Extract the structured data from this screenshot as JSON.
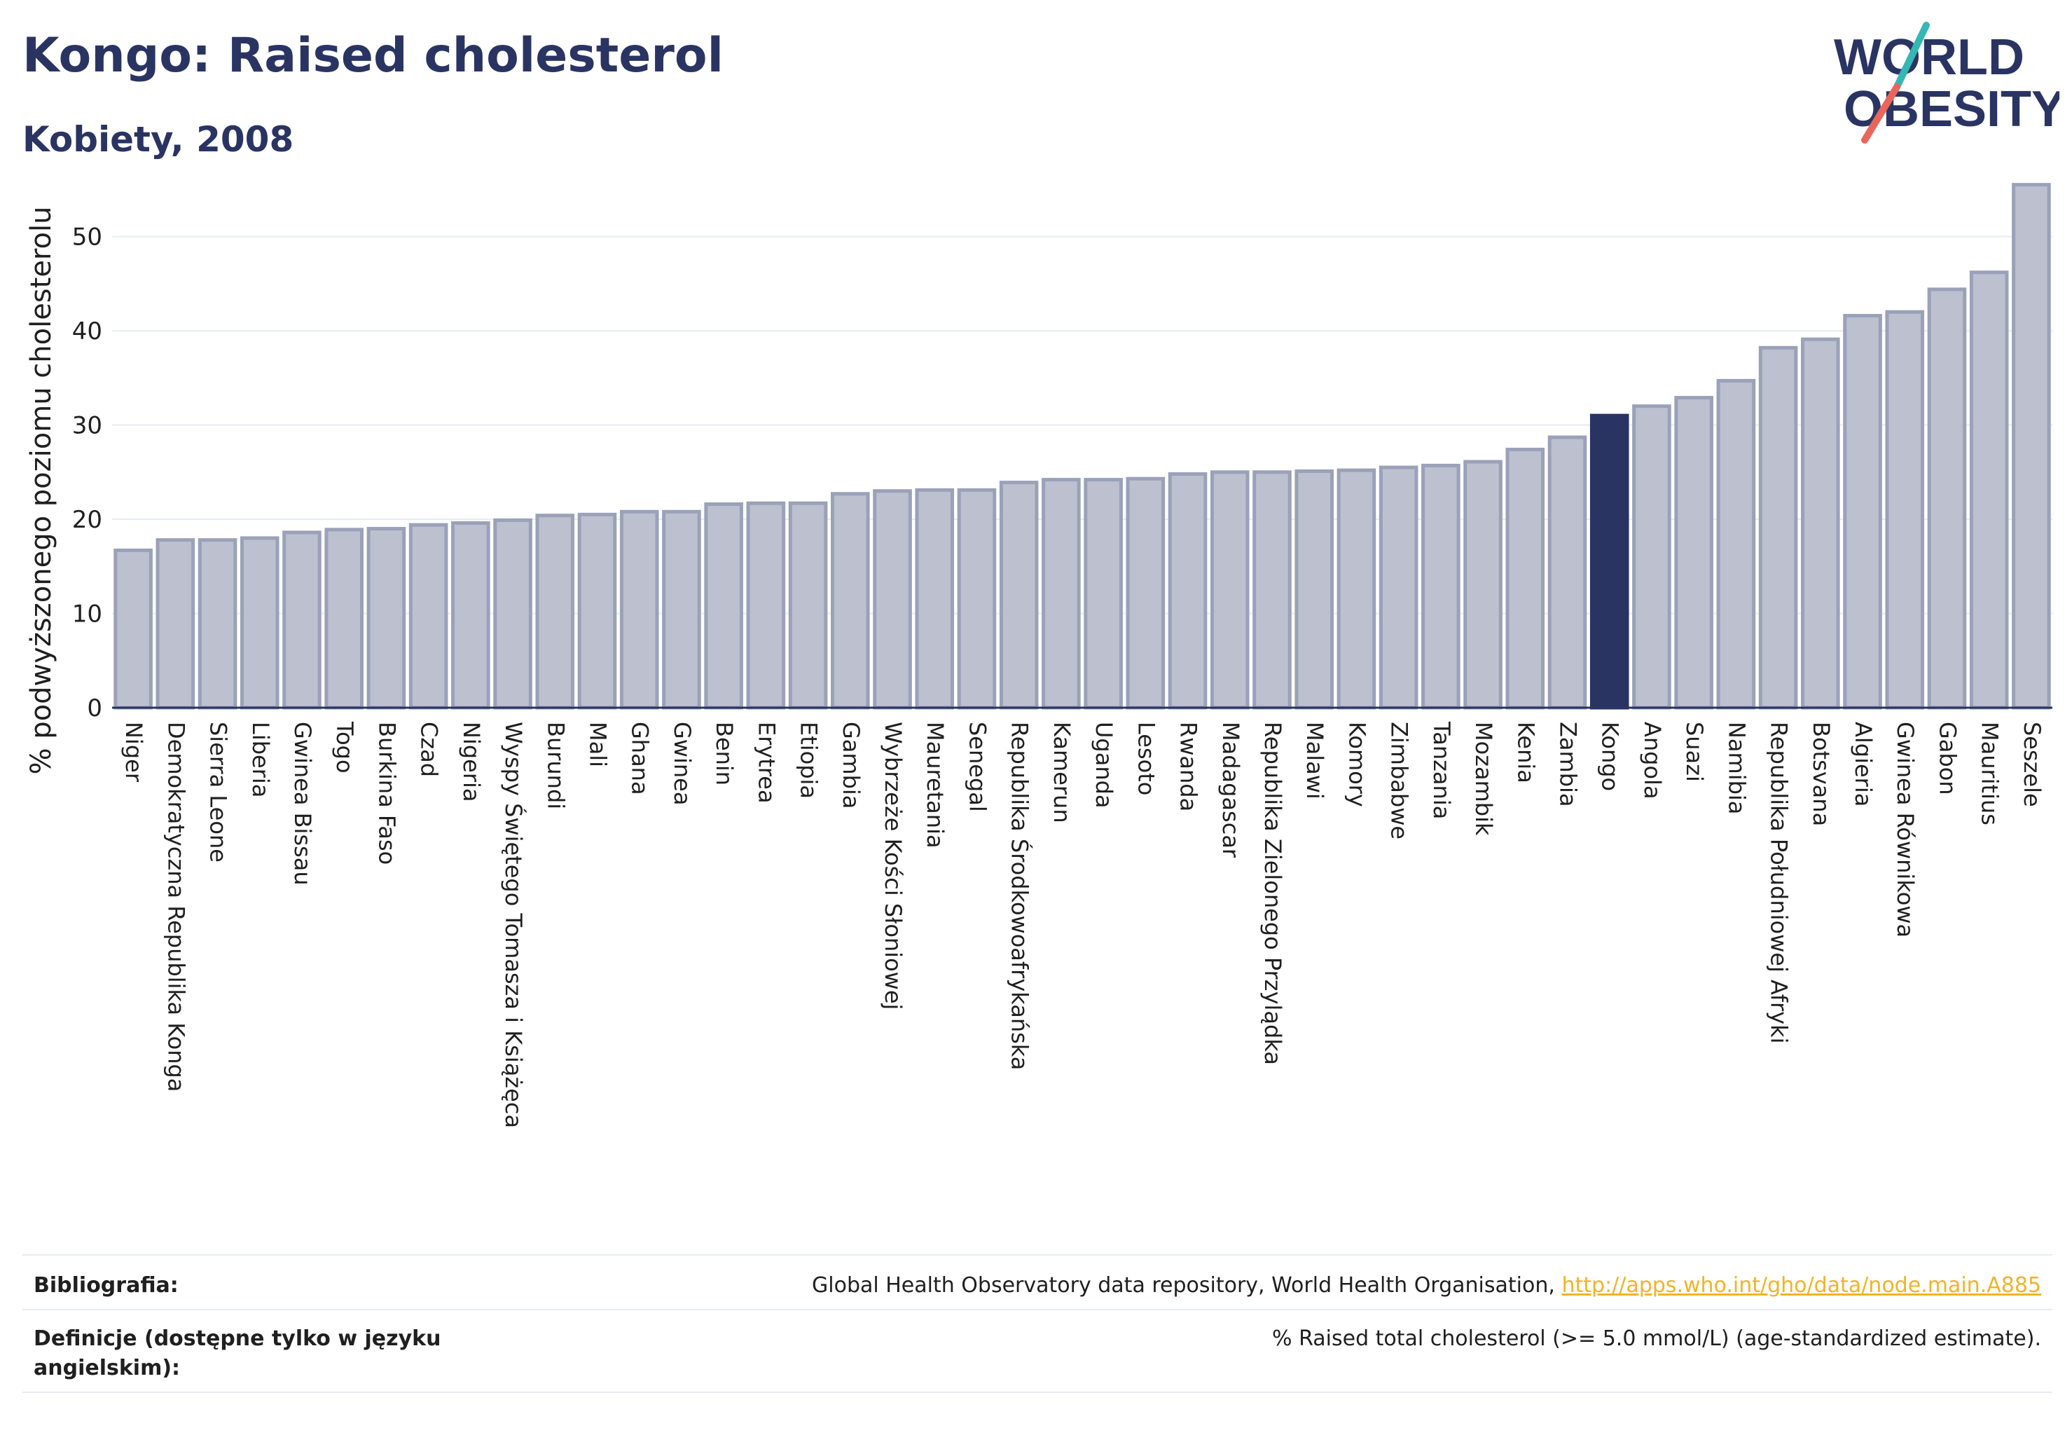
{
  "title": "Kongo: Raised cholesterol",
  "subtitle": "Kobiety, 2008",
  "logo": {
    "line1": "WORLD",
    "line2": "OBESITY",
    "accent_teal": "#36b7b4",
    "accent_coral": "#e8675a"
  },
  "colors": {
    "bar": "#bcc0cf",
    "bar_edge": "#9aa1b8",
    "highlight": "#2a3463",
    "grid": "#e8ebf3",
    "link": "#f0b428"
  },
  "chart_data": {
    "type": "bar",
    "ylabel": "% podwyższonego poziomu cholesterolu",
    "xlabel": "",
    "ylim": [
      0,
      58
    ],
    "yticks": [
      0,
      10,
      20,
      30,
      40,
      50
    ],
    "grid": true,
    "highlight": "Kongo",
    "categories": [
      "Niger",
      "Demokratyczna Republika Konga",
      "Sierra Leone",
      "Liberia",
      "Gwinea Bissau",
      "Togo",
      "Burkina Faso",
      "Czad",
      "Nigeria",
      "Wyspy Świętego Tomasza i Książęca",
      "Burundi",
      "Mali",
      "Ghana",
      "Gwinea",
      "Benin",
      "Erytrea",
      "Etiopia",
      "Gambia",
      "Wybrzeże Kości Słoniowej",
      "Mauretania",
      "Senegal",
      "Republika Środkowoafrykańska",
      "Kamerun",
      "Uganda",
      "Lesoto",
      "Rwanda",
      "Madagascar",
      "Republika Zielonego Przylądka",
      "Malawi",
      "Komory",
      "Zimbabwe",
      "Tanzania",
      "Mozambik",
      "Kenia",
      "Zambia",
      "Kongo",
      "Angola",
      "Suazi",
      "Namibia",
      "Republika Południowej Afryki",
      "Botsvana",
      "Algieria",
      "Gwinea Równikowa",
      "Gabon",
      "Mauritius",
      "Seszele"
    ],
    "values": [
      16.7,
      17.8,
      17.8,
      18.0,
      18.6,
      18.9,
      19.0,
      19.4,
      19.6,
      19.9,
      20.4,
      20.5,
      20.8,
      20.8,
      21.6,
      21.7,
      21.7,
      22.7,
      23.0,
      23.1,
      23.1,
      23.9,
      24.2,
      24.2,
      24.3,
      24.8,
      25.0,
      25.0,
      25.1,
      25.2,
      25.5,
      25.7,
      26.1,
      27.4,
      28.7,
      31.0,
      32.0,
      32.9,
      34.7,
      38.2,
      39.1,
      41.6,
      42.0,
      44.4,
      46.2,
      55.5
    ]
  },
  "footer": {
    "bibliography_label": "Bibliografia:",
    "bibliography_text": "Global Health Observatory data repository, World Health Organisation, ",
    "bibliography_link": "http://apps.who.int/gho/data/node.main.A885",
    "definitions_label": "Definicje (dostępne tylko w języku angielskim):",
    "definitions_text": "% Raised total cholesterol (>= 5.0 mmol/L) (age-standardized estimate)."
  }
}
